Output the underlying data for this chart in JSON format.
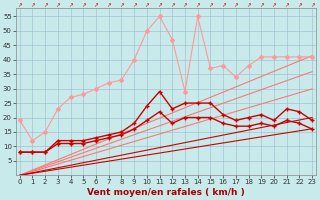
{
  "x": [
    0,
    1,
    2,
    3,
    4,
    5,
    6,
    7,
    8,
    9,
    10,
    11,
    12,
    13,
    14,
    15,
    16,
    17,
    18,
    19,
    20,
    21,
    22,
    23
  ],
  "series": [
    {
      "color": "#ff9999",
      "linewidth": 0.8,
      "marker": "D",
      "markersize": 2.0,
      "zorder": 4,
      "y": [
        19,
        12,
        15,
        23,
        27,
        28,
        30,
        32,
        33,
        40,
        50,
        55,
        47,
        29,
        55,
        37,
        38,
        34,
        38,
        41,
        41,
        41,
        41,
        41
      ]
    },
    {
      "color": "#ff7777",
      "linewidth": 0.8,
      "marker": null,
      "markersize": 0,
      "zorder": 2,
      "y": [
        0,
        1.8,
        3.6,
        5.4,
        7.2,
        9.0,
        10.8,
        12.6,
        14.4,
        16.2,
        18.0,
        19.8,
        21.6,
        23.4,
        25.2,
        27.0,
        28.8,
        30.6,
        32.4,
        34.2,
        36.0,
        37.8,
        39.6,
        41.4
      ]
    },
    {
      "color": "#ff7777",
      "linewidth": 0.8,
      "marker": null,
      "markersize": 0,
      "zorder": 2,
      "y": [
        0,
        1.56,
        3.12,
        4.68,
        6.24,
        7.8,
        9.36,
        10.92,
        12.48,
        14.04,
        15.6,
        17.16,
        18.72,
        20.28,
        21.84,
        23.4,
        24.96,
        26.52,
        28.08,
        29.64,
        31.2,
        32.76,
        34.32,
        35.88
      ]
    },
    {
      "color": "#ff7777",
      "linewidth": 0.8,
      "marker": null,
      "markersize": 0,
      "zorder": 2,
      "y": [
        0,
        1.3,
        2.6,
        3.9,
        5.2,
        6.5,
        7.8,
        9.1,
        10.4,
        11.7,
        13.0,
        14.3,
        15.6,
        16.9,
        18.2,
        19.5,
        20.8,
        22.1,
        23.4,
        24.7,
        26.0,
        27.3,
        28.6,
        29.9
      ]
    },
    {
      "color": "#cc0000",
      "linewidth": 1.0,
      "marker": "+",
      "markersize": 3.5,
      "zorder": 5,
      "y": [
        8,
        8,
        8,
        12,
        12,
        12,
        13,
        14,
        15,
        18,
        24,
        29,
        23,
        25,
        25,
        25,
        21,
        19,
        20,
        21,
        19,
        23,
        22,
        19
      ]
    },
    {
      "color": "#cc0000",
      "linewidth": 1.0,
      "marker": "+",
      "markersize": 3.5,
      "zorder": 5,
      "y": [
        8,
        8,
        8,
        11,
        11,
        11,
        12,
        13,
        14,
        16,
        19,
        22,
        18,
        20,
        20,
        20,
        18,
        17,
        17,
        18,
        17,
        19,
        18,
        16
      ]
    },
    {
      "color": "#cc0000",
      "linewidth": 0.8,
      "marker": null,
      "markersize": 0,
      "zorder": 3,
      "y": [
        0,
        0.87,
        1.74,
        2.61,
        3.48,
        4.35,
        5.22,
        6.09,
        6.96,
        7.83,
        8.7,
        9.57,
        10.44,
        11.31,
        12.18,
        13.05,
        13.92,
        14.79,
        15.66,
        16.53,
        17.4,
        18.27,
        19.14,
        20.0
      ]
    },
    {
      "color": "#cc0000",
      "linewidth": 0.8,
      "marker": null,
      "markersize": 0,
      "zorder": 3,
      "y": [
        0,
        0.7,
        1.4,
        2.1,
        2.8,
        3.5,
        4.2,
        4.9,
        5.6,
        6.3,
        7.0,
        7.7,
        8.4,
        9.1,
        9.8,
        10.5,
        11.2,
        11.9,
        12.6,
        13.3,
        14.0,
        14.7,
        15.4,
        16.1
      ]
    }
  ],
  "xlim": [
    -0.3,
    23.3
  ],
  "ylim": [
    0,
    58
  ],
  "yticks": [
    5,
    10,
    15,
    20,
    25,
    30,
    35,
    40,
    45,
    50,
    55
  ],
  "xticks": [
    0,
    1,
    2,
    3,
    4,
    5,
    6,
    7,
    8,
    9,
    10,
    11,
    12,
    13,
    14,
    15,
    16,
    17,
    18,
    19,
    20,
    21,
    22,
    23
  ],
  "xlabel": "Vent moyen/en rafales ( km/h )",
  "background_color": "#c8eaea",
  "grid_color": "#9ab8cc",
  "label_fontsize": 6.5,
  "tick_fontsize": 5
}
